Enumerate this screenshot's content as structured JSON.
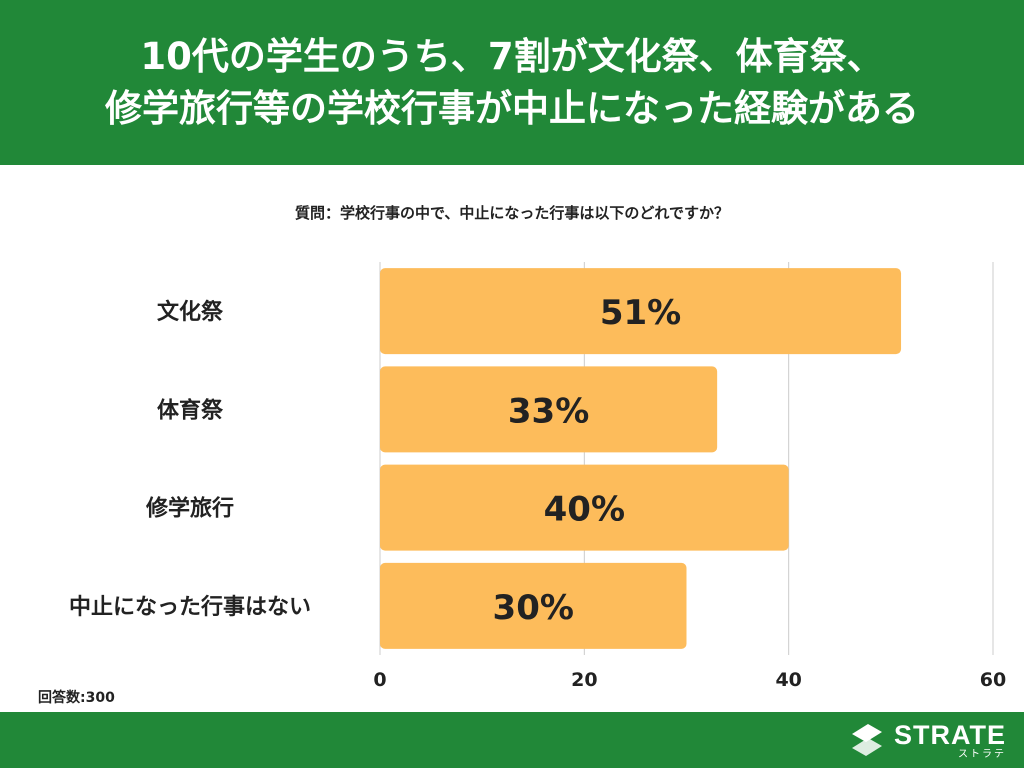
{
  "header": {
    "line1": "10代の学生のうち、7割が文化祭、体育祭、",
    "line2": "修学旅行等の学校行事が中止になった経験がある"
  },
  "question": "質問：学校行事の中で、中止になった行事は以下のどれですか？",
  "note": "回答数:300",
  "logo": {
    "main": "STRATE",
    "sub": "ストラテ"
  },
  "colors": {
    "header_bg": "#218838",
    "bar": "#FDBC5B",
    "grid": "#cccccc",
    "text": "#222222"
  },
  "chart_data": {
    "type": "bar",
    "orientation": "horizontal",
    "categories": [
      "文化祭",
      "体育祭",
      "修学旅行",
      "中止になった行事はない"
    ],
    "values": [
      51,
      33,
      40,
      30
    ],
    "value_labels": [
      "51%",
      "33%",
      "40%",
      "30%"
    ],
    "xlim": [
      0,
      60
    ],
    "xticks": [
      0,
      20,
      40,
      60
    ],
    "grid": true,
    "legend": "none"
  }
}
